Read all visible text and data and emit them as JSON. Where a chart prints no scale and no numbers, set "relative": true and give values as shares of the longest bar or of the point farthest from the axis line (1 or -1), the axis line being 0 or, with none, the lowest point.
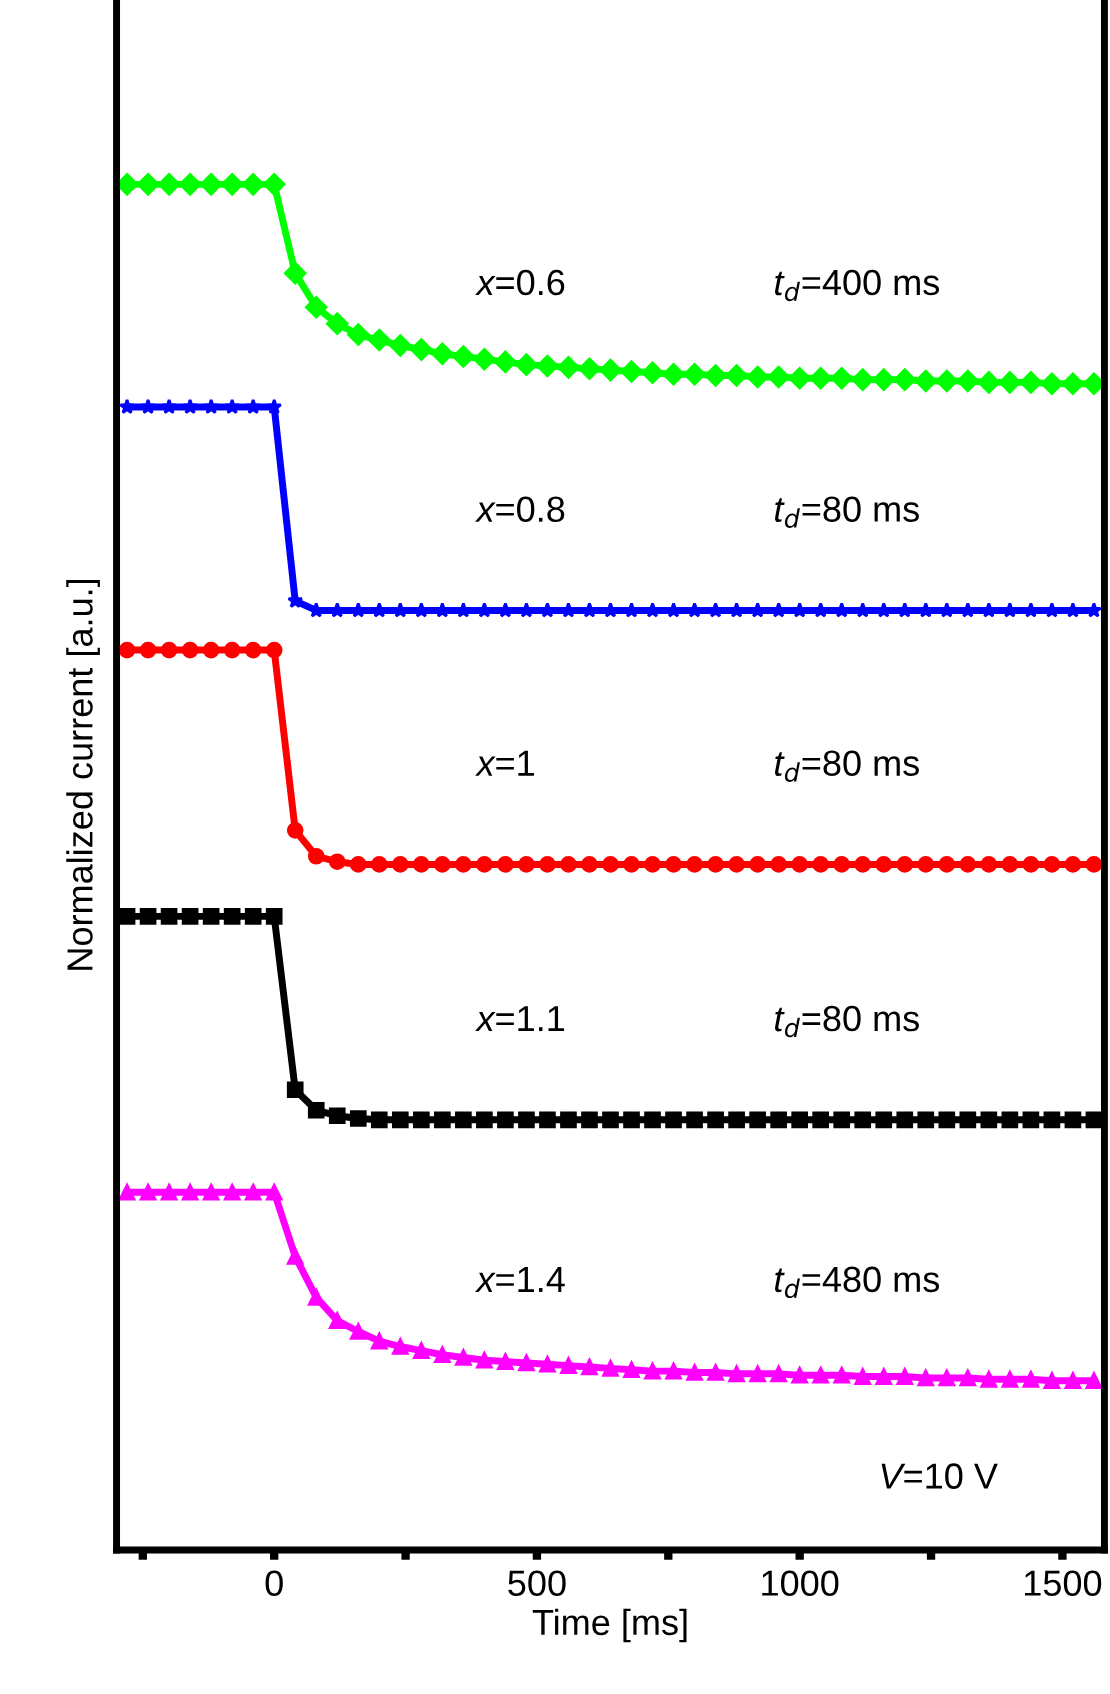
{
  "chart_data": {
    "type": "line",
    "relative": true,
    "xlabel": "Time [ms]",
    "ylabel": "Normalized current [a.u.]",
    "x": [
      -280,
      -240,
      -200,
      -160,
      -120,
      -80,
      -40,
      0,
      40,
      80,
      120,
      160,
      200,
      240,
      280,
      320,
      360,
      400,
      440,
      480,
      520,
      560,
      600,
      640,
      680,
      720,
      760,
      800,
      840,
      880,
      920,
      960,
      1000,
      1040,
      1080,
      1120,
      1160,
      1200,
      1240,
      1280,
      1320,
      1360,
      1400,
      1440,
      1480,
      1520,
      1560
    ],
    "xlim": [
      -300,
      1580
    ],
    "xticks": [
      {
        "value": -250,
        "label": null
      },
      0,
      {
        "value": 250,
        "label": null
      },
      500,
      {
        "value": 750,
        "label": null
      },
      1000,
      {
        "value": 1250,
        "label": null
      },
      1500
    ],
    "grid": false,
    "legend": false,
    "line_style": "solid",
    "series": [
      {
        "name": "x=0.6",
        "color": "#00ff00",
        "marker": "diamond",
        "values": [
          1.0,
          1.0,
          1.0,
          1.0,
          1.0,
          1.0,
          1.0,
          1.0,
          0.935,
          0.91,
          0.898,
          0.89,
          0.886,
          0.882,
          0.879,
          0.876,
          0.874,
          0.872,
          0.87,
          0.868,
          0.867,
          0.866,
          0.865,
          0.864,
          0.863,
          0.862,
          0.861,
          0.861,
          0.86,
          0.86,
          0.859,
          0.859,
          0.858,
          0.858,
          0.858,
          0.857,
          0.857,
          0.857,
          0.856,
          0.856,
          0.856,
          0.855,
          0.855,
          0.855,
          0.854,
          0.854,
          0.854
        ]
      },
      {
        "name": "x=0.8",
        "color": "#0000ff",
        "marker": "star",
        "values": [
          0.837,
          0.837,
          0.837,
          0.837,
          0.837,
          0.837,
          0.837,
          0.837,
          0.695,
          0.688,
          0.688,
          0.688,
          0.688,
          0.688,
          0.688,
          0.688,
          0.688,
          0.688,
          0.688,
          0.688,
          0.688,
          0.688,
          0.688,
          0.688,
          0.688,
          0.688,
          0.688,
          0.688,
          0.688,
          0.688,
          0.688,
          0.688,
          0.688,
          0.688,
          0.688,
          0.688,
          0.688,
          0.688,
          0.688,
          0.688,
          0.688,
          0.688,
          0.688,
          0.688,
          0.688,
          0.688,
          0.688
        ]
      },
      {
        "name": "x=1",
        "color": "#ff0000",
        "marker": "circle",
        "values": [
          0.659,
          0.659,
          0.659,
          0.659,
          0.659,
          0.659,
          0.659,
          0.659,
          0.527,
          0.508,
          0.504,
          0.502,
          0.502,
          0.502,
          0.502,
          0.502,
          0.502,
          0.502,
          0.502,
          0.502,
          0.502,
          0.502,
          0.502,
          0.502,
          0.502,
          0.502,
          0.502,
          0.502,
          0.502,
          0.502,
          0.502,
          0.502,
          0.502,
          0.502,
          0.502,
          0.502,
          0.502,
          0.502,
          0.502,
          0.502,
          0.502,
          0.502,
          0.502,
          0.502,
          0.502,
          0.502,
          0.502
        ]
      },
      {
        "name": "x=1.1",
        "color": "#000000",
        "marker": "square",
        "values": [
          0.464,
          0.464,
          0.464,
          0.464,
          0.464,
          0.464,
          0.464,
          0.464,
          0.337,
          0.322,
          0.318,
          0.316,
          0.315,
          0.315,
          0.315,
          0.315,
          0.315,
          0.315,
          0.315,
          0.315,
          0.315,
          0.315,
          0.315,
          0.315,
          0.315,
          0.315,
          0.315,
          0.315,
          0.315,
          0.315,
          0.315,
          0.315,
          0.315,
          0.315,
          0.315,
          0.315,
          0.315,
          0.315,
          0.315,
          0.315,
          0.315,
          0.315,
          0.315,
          0.315,
          0.315,
          0.315,
          0.315
        ]
      },
      {
        "name": "x=1.4",
        "color": "#ff00ff",
        "marker": "triangle",
        "values": [
          0.262,
          0.262,
          0.262,
          0.262,
          0.262,
          0.262,
          0.262,
          0.262,
          0.215,
          0.185,
          0.168,
          0.16,
          0.153,
          0.149,
          0.146,
          0.143,
          0.141,
          0.139,
          0.138,
          0.137,
          0.136,
          0.135,
          0.134,
          0.133,
          0.132,
          0.131,
          0.131,
          0.13,
          0.13,
          0.129,
          0.129,
          0.129,
          0.128,
          0.128,
          0.128,
          0.127,
          0.127,
          0.127,
          0.126,
          0.126,
          0.126,
          0.125,
          0.125,
          0.125,
          0.124,
          0.124,
          0.124
        ]
      }
    ],
    "annotations": [
      "t$_{d}$=400 ms",
      "t$_{d}$=80 ms",
      "t$_{d}$=80 ms",
      "t$_{d}$=80 ms",
      "t$_{d}$=480 ms",
      "V=10 V"
    ]
  }
}
